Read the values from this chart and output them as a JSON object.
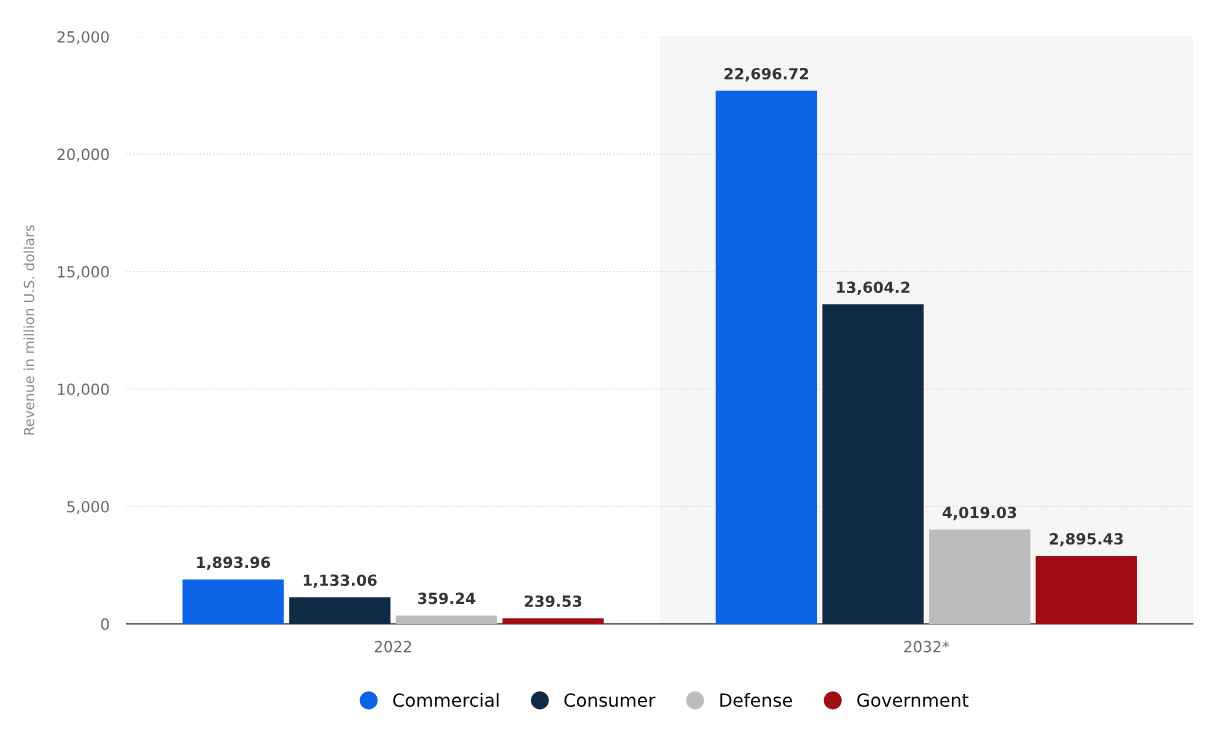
{
  "chart_data": {
    "type": "bar",
    "categories": [
      "2022",
      "2032*"
    ],
    "series": [
      {
        "name": "Commercial",
        "color": "#0a63e4",
        "values": [
          1893.96,
          22696.72
        ]
      },
      {
        "name": "Consumer",
        "color": "#0f2a45",
        "values": [
          1133.06,
          13604.2
        ]
      },
      {
        "name": "Defense",
        "color": "#bcbcbc",
        "values": [
          359.24,
          4019.03
        ]
      },
      {
        "name": "Government",
        "color": "#a10c13",
        "values": [
          239.53,
          2895.43
        ]
      }
    ],
    "ylabel": "Revenue in million U.S. dollars",
    "ylim": [
      0,
      25000
    ],
    "yticks": [
      {
        "value": 0,
        "label": "0"
      },
      {
        "value": 5000,
        "label": "5,000"
      },
      {
        "value": 10000,
        "label": "10,000"
      },
      {
        "value": 15000,
        "label": "15,000"
      },
      {
        "value": 20000,
        "label": "20,000"
      },
      {
        "value": 25000,
        "label": "25,000"
      }
    ],
    "value_labels": [
      [
        "1,893.96",
        "22,696.72"
      ],
      [
        "1,133.06",
        "13,604.2"
      ],
      [
        "359.24",
        "4,019.03"
      ],
      [
        "239.53",
        "2,895.43"
      ]
    ],
    "bands": [
      {
        "axis": "x",
        "from": "2032*",
        "to": "2032*",
        "color": "#f6f6f6"
      }
    ],
    "grid": "y",
    "legend": "bottom"
  }
}
